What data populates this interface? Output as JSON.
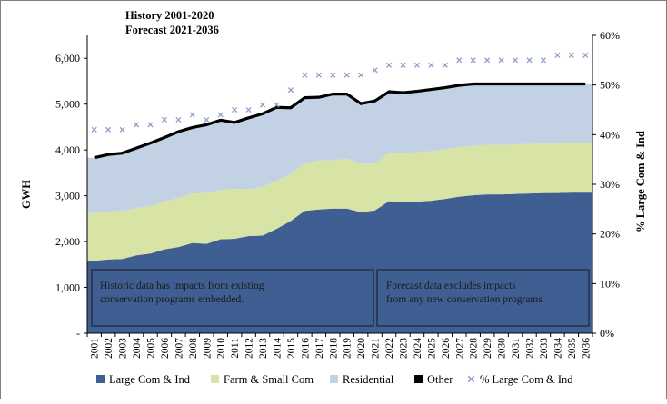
{
  "chart_data": {
    "type": "area",
    "title_lines": [
      "History 2001-2020",
      "Forecast 2021-2036"
    ],
    "ylabel": "GWH",
    "y2label": "% Large Com & Ind",
    "ylim": [
      0,
      6500
    ],
    "y2lim": [
      0,
      60
    ],
    "yticks": [
      {
        "value": 0,
        "label": "-"
      },
      {
        "value": 1000,
        "label": "1,000"
      },
      {
        "value": 2000,
        "label": "2,000"
      },
      {
        "value": 3000,
        "label": "3,000"
      },
      {
        "value": 4000,
        "label": "4,000"
      },
      {
        "value": 5000,
        "label": "5,000"
      },
      {
        "value": 6000,
        "label": "6,000"
      }
    ],
    "y2ticks": [
      {
        "value": 0,
        "label": "0%"
      },
      {
        "value": 10,
        "label": "10%"
      },
      {
        "value": 20,
        "label": "20%"
      },
      {
        "value": 30,
        "label": "30%"
      },
      {
        "value": 40,
        "label": "40%"
      },
      {
        "value": 50,
        "label": "50%"
      },
      {
        "value": 60,
        "label": "60%"
      }
    ],
    "categories": [
      "2001",
      "2002",
      "2003",
      "2004",
      "2005",
      "2006",
      "2007",
      "2008",
      "2009",
      "2010",
      "2011",
      "2012",
      "2013",
      "2014",
      "2015",
      "2016",
      "2017",
      "2018",
      "2019",
      "2020",
      "2021",
      "2022",
      "2023",
      "2024",
      "2025",
      "2026",
      "2027",
      "2028",
      "2029",
      "2030",
      "2031",
      "2032",
      "2033",
      "2034",
      "2035",
      "2036"
    ],
    "stacked_series": [
      {
        "name": "Large Com & Ind",
        "color": "#3f5f92",
        "values": [
          1580,
          1610,
          1620,
          1700,
          1740,
          1830,
          1880,
          1970,
          1950,
          2050,
          2060,
          2120,
          2130,
          2280,
          2450,
          2670,
          2700,
          2720,
          2720,
          2640,
          2680,
          2880,
          2860,
          2870,
          2890,
          2930,
          2980,
          3010,
          3030,
          3030,
          3040,
          3050,
          3060,
          3060,
          3070,
          3070
        ]
      },
      {
        "name": "Farm & Small Com",
        "color": "#d7e4a6",
        "values": [
          1040,
          1050,
          1050,
          1030,
          1040,
          1050,
          1070,
          1080,
          1110,
          1080,
          1090,
          1020,
          1060,
          1050,
          1020,
          1040,
          1070,
          1050,
          1090,
          1060,
          1030,
          1060,
          1070,
          1080,
          1080,
          1090,
          1080,
          1080,
          1080,
          1080,
          1080,
          1080,
          1080,
          1080,
          1080,
          1080
        ]
      },
      {
        "name": "Residential",
        "color": "#c3d1e5",
        "values": [
          1210,
          1240,
          1260,
          1310,
          1370,
          1390,
          1450,
          1440,
          1490,
          1520,
          1450,
          1560,
          1600,
          1600,
          1450,
          1430,
          1380,
          1450,
          1410,
          1310,
          1360,
          1330,
          1320,
          1330,
          1350,
          1340,
          1350,
          1350,
          1330,
          1330,
          1320,
          1310,
          1300,
          1300,
          1290,
          1290
        ]
      }
    ],
    "total_line": {
      "name": "Other",
      "color": "#000000",
      "values": [
        3830,
        3900,
        3930,
        4040,
        4150,
        4270,
        4400,
        4490,
        4550,
        4650,
        4600,
        4700,
        4790,
        4930,
        4920,
        5140,
        5150,
        5220,
        5220,
        5010,
        5070,
        5270,
        5250,
        5280,
        5320,
        5360,
        5410,
        5440,
        5440,
        5440,
        5440,
        5440,
        5440,
        5440,
        5440,
        5440
      ]
    },
    "pct_series": {
      "name": "% Large Com & Ind",
      "color": "#8ea0c4",
      "values": [
        41,
        41,
        41,
        42,
        42,
        43,
        43,
        44,
        43,
        44,
        45,
        45,
        46,
        46,
        49,
        52,
        52,
        52,
        52,
        52,
        53,
        54,
        54,
        54,
        54,
        54,
        55,
        55,
        55,
        55,
        55,
        55,
        55,
        56,
        56,
        56
      ]
    },
    "annotations": [
      "Historic data has impacts from existing conservation programs embedded.",
      "Forecast data excludes impacts from any new conservation programs"
    ],
    "legend": {
      "position": "bottom",
      "items": [
        {
          "label": "Large Com & Ind",
          "marker": "rect",
          "color": "#3f5f92"
        },
        {
          "label": "Farm & Small Com",
          "marker": "rect",
          "color": "#d7e4a6"
        },
        {
          "label": "Residential",
          "marker": "rect",
          "color": "#c3d1e5"
        },
        {
          "label": "Other",
          "marker": "rect",
          "color": "#000000"
        },
        {
          "label": "% Large Com & Ind",
          "marker": "x",
          "color": "#8ea0c4"
        }
      ]
    }
  }
}
